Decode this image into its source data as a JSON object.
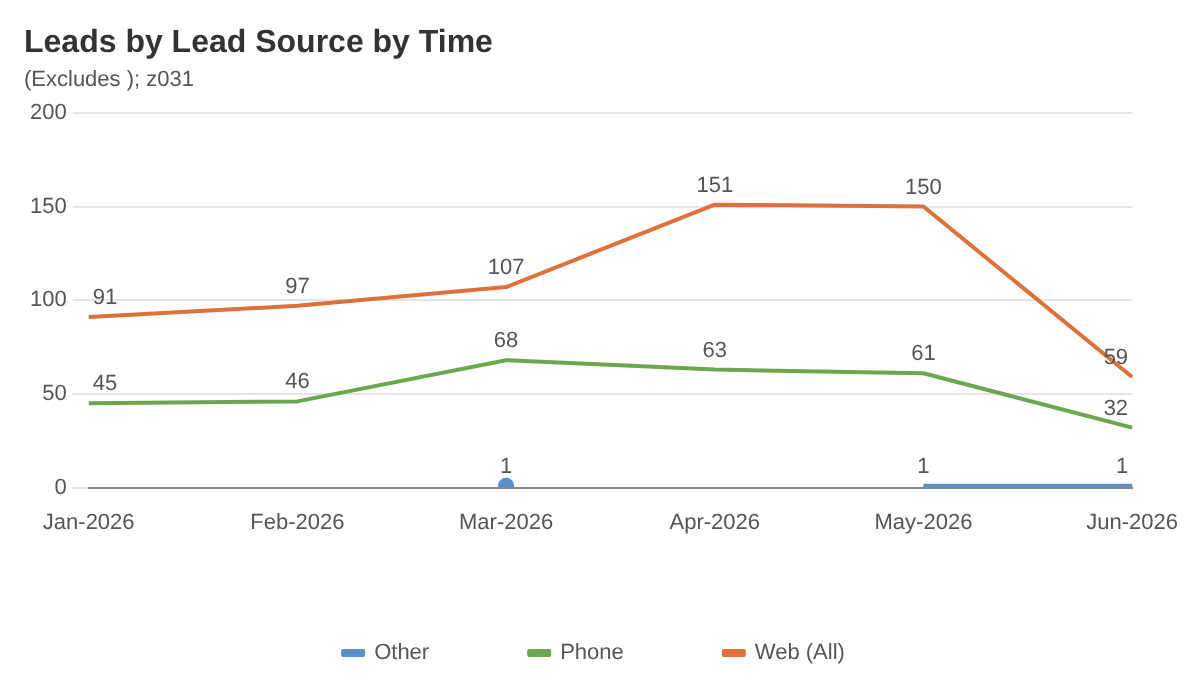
{
  "chart_data": {
    "type": "line",
    "title": "Leads by Lead Source by Time",
    "subtitle": "(Excludes ); z031",
    "categories": [
      "Jan-2026",
      "Feb-2026",
      "Mar-2026",
      "Apr-2026",
      "May-2026",
      "Jun-2026"
    ],
    "series": [
      {
        "name": "Other",
        "color": "#5b8fc9",
        "values": [
          null,
          null,
          1,
          null,
          1,
          1
        ]
      },
      {
        "name": "Phone",
        "color": "#6aa84f",
        "values": [
          45,
          46,
          68,
          63,
          61,
          32
        ]
      },
      {
        "name": "Web (All)",
        "color": "#e0703a",
        "values": [
          91,
          97,
          107,
          151,
          150,
          59
        ]
      }
    ],
    "ylim": [
      0,
      200
    ],
    "yticks": [
      0,
      50,
      100,
      150,
      200
    ],
    "grid": "y",
    "legend": "bottom",
    "data_labels": true
  }
}
